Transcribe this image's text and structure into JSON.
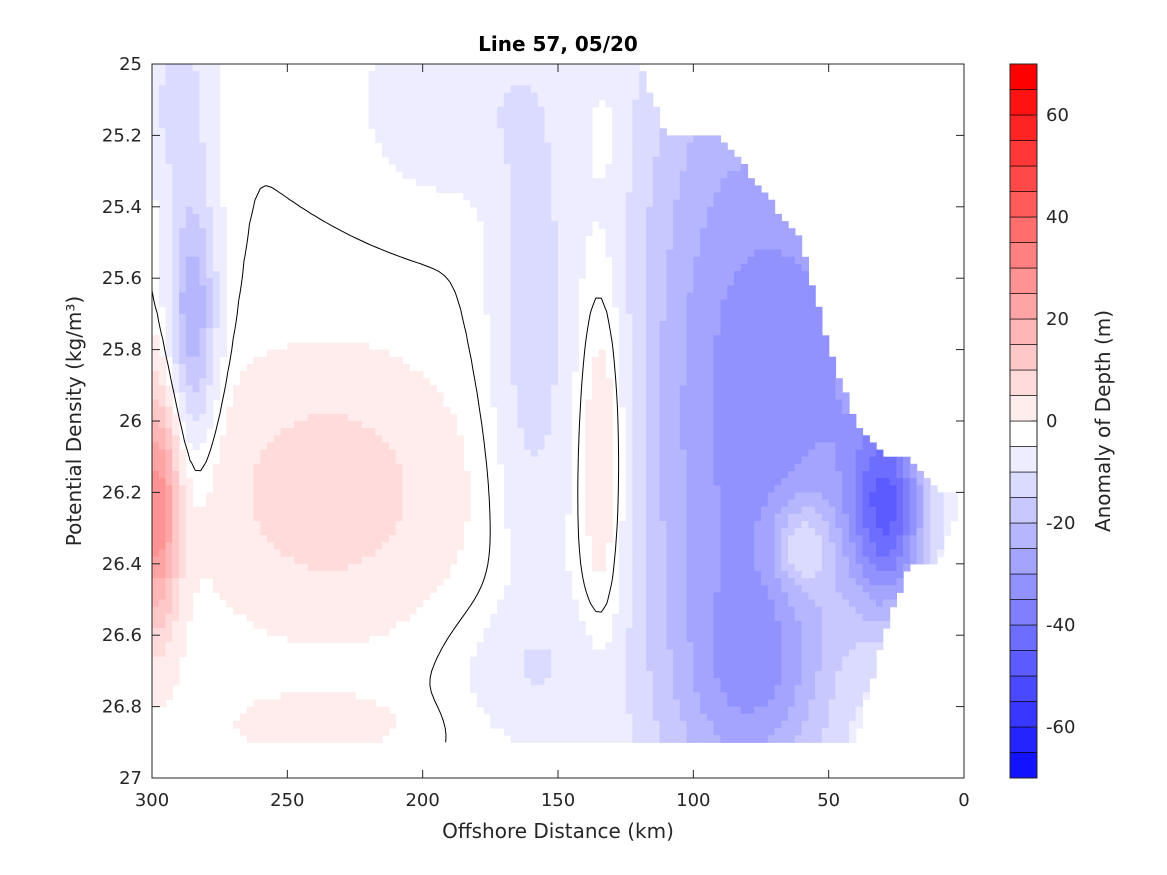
{
  "chart_data": {
    "type": "heatmap",
    "subtype": "filled-contour",
    "title": "Line 57, 05/20",
    "xlabel": "Offshore Distance (km)",
    "ylabel": "Potential Density (kg/m³)",
    "colorbar_label": "Anomaly of Depth (m)",
    "xlim": [
      300,
      0
    ],
    "x_reversed": true,
    "ylim": [
      25,
      27
    ],
    "y_reversed": true,
    "xticks": [
      300,
      250,
      200,
      150,
      100,
      50,
      0
    ],
    "yticks": [
      25,
      25.2,
      25.4,
      25.6,
      25.8,
      26,
      26.2,
      26.4,
      26.6,
      26.8,
      27
    ],
    "ytick_labels": [
      "25",
      "25.2",
      "25.4",
      "25.6",
      "25.8",
      "26",
      "26.2",
      "26.4",
      "26.6",
      "26.8",
      "27"
    ],
    "clim": [
      -70,
      70
    ],
    "colorbar_ticks": [
      60,
      40,
      20,
      0,
      -20,
      -40,
      -60
    ],
    "contour_levels_step": 5,
    "zero_contour_shown": true,
    "colormap": {
      "negative": "#0000ff",
      "zero": "#ffffff",
      "positive": "#ff0000"
    },
    "x": [
      300,
      290,
      280,
      270,
      260,
      250,
      240,
      230,
      220,
      210,
      200,
      190,
      180,
      170,
      160,
      150,
      140,
      130,
      120,
      110,
      100,
      90,
      80,
      70,
      60,
      50,
      40,
      30,
      20,
      10,
      0
    ],
    "y": [
      25.0,
      25.1,
      25.2,
      25.3,
      25.4,
      25.5,
      25.6,
      25.7,
      25.8,
      25.9,
      26.0,
      26.1,
      26.2,
      26.3,
      26.4,
      26.5,
      26.6,
      26.7,
      26.8,
      26.9
    ],
    "bottom_limit_density": [
      26.9,
      26.9,
      26.9,
      26.9,
      26.9,
      26.9,
      26.9,
      26.9,
      26.9,
      26.9,
      26.9,
      26.9,
      26.9,
      26.9,
      26.9,
      26.9,
      26.9,
      26.9,
      26.9,
      26.9,
      26.9,
      26.9,
      26.9,
      26.9,
      26.9,
      26.9,
      26.9,
      26.6,
      26.4,
      26.4,
      26.2
    ],
    "top_limit_density": [
      25.0,
      25.0,
      25.0,
      25.0,
      25.0,
      25.0,
      25.0,
      25.0,
      25.0,
      25.0,
      25.0,
      25.0,
      25.0,
      25.0,
      25.0,
      25.0,
      25.0,
      25.0,
      25.0,
      25.2,
      25.2,
      25.2,
      25.3,
      25.4,
      25.5,
      25.8,
      26.0,
      26.1,
      26.1,
      26.2,
      26.2
    ]
  }
}
